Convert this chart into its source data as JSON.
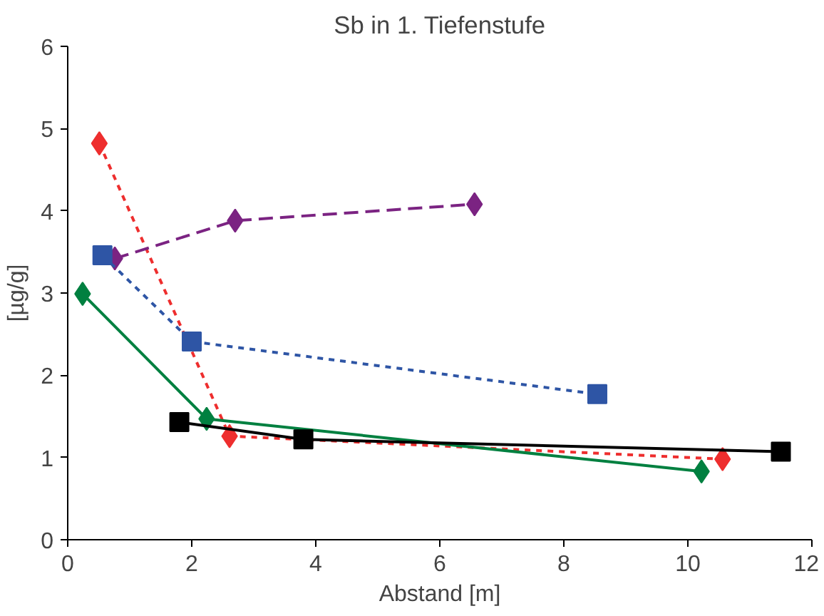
{
  "chart_data": {
    "type": "line",
    "title": "Sb in 1. Tiefenstufe",
    "xlabel": "Abstand [m]",
    "ylabel": "[µg/g]",
    "xlim": [
      0,
      12
    ],
    "xticks": [
      0,
      2,
      4,
      6,
      8,
      10,
      12
    ],
    "ylim": [
      0,
      6
    ],
    "yticks": [
      0,
      1,
      2,
      3,
      4,
      5,
      6
    ],
    "grid": false,
    "series": [
      {
        "color": "#ee2e2e",
        "marker": "diamond",
        "line_style": "dotted",
        "x": [
          0.51,
          2.61,
          10.56
        ],
        "values": [
          4.82,
          1.26,
          0.98
        ]
      },
      {
        "color": "#7b2382",
        "marker": "diamond",
        "line_style": "dashed",
        "x": [
          0.76,
          2.7,
          6.56
        ],
        "values": [
          3.42,
          3.88,
          4.08
        ]
      },
      {
        "color": "#2e55a5",
        "marker": "square",
        "line_style": "dotted",
        "x": [
          0.56,
          2.0,
          8.54
        ],
        "values": [
          3.46,
          2.41,
          1.77
        ]
      },
      {
        "color": "#008040",
        "marker": "diamond",
        "line_style": "solid",
        "x": [
          0.24,
          2.24,
          10.22
        ],
        "values": [
          2.99,
          1.47,
          0.83
        ]
      },
      {
        "color": "#000000",
        "marker": "square",
        "line_style": "solid",
        "x": [
          1.8,
          3.8,
          11.5
        ],
        "values": [
          1.43,
          1.22,
          1.07
        ]
      }
    ]
  }
}
